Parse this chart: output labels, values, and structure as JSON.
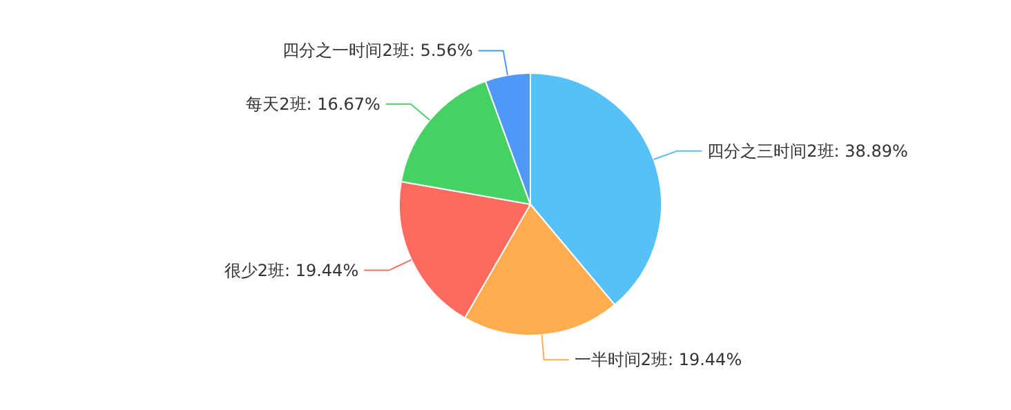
{
  "chart_data": {
    "type": "pie",
    "categories": [
      "四分之三时间2班",
      "一半时间2班",
      "很少2班",
      "每天2班",
      "四分之一时间2班"
    ],
    "values": [
      38.89,
      19.44,
      19.44,
      16.67,
      5.56
    ],
    "value_labels": [
      "38.89%",
      "19.44%",
      "19.44%",
      "16.67%",
      "5.56%"
    ],
    "colors": [
      "#56c1f9",
      "#ffad4f",
      "#ff6a5f",
      "#45d262",
      "#4f98f8"
    ]
  }
}
